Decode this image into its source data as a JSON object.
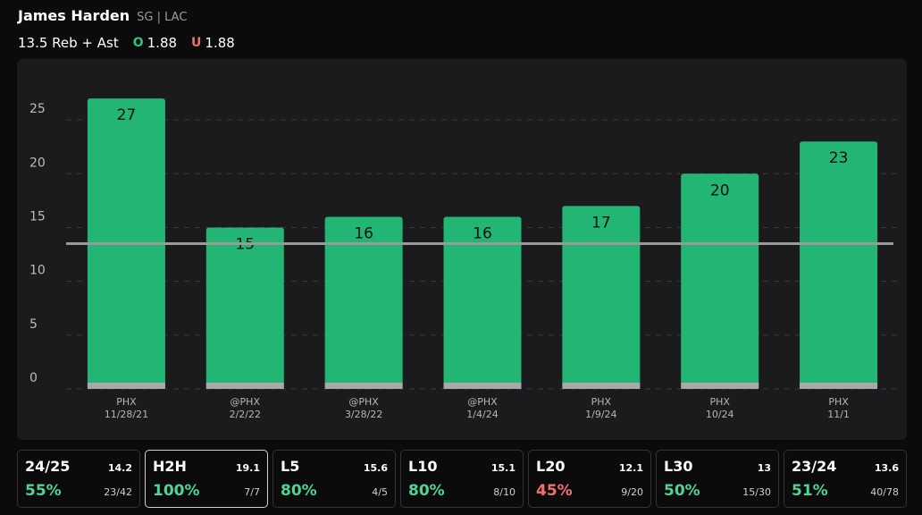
{
  "header": {
    "player_name": "James Harden",
    "player_meta": "SG | LAC",
    "prop_line": "13.5 Reb + Ast",
    "over_icon": "O",
    "over_odds": "1.88",
    "under_icon": "U",
    "under_odds": "1.88"
  },
  "colors": {
    "bar": "#22b573",
    "bar_base": "#a8a8a8",
    "line": "#9a9a9a",
    "grid": "#3a3a3d",
    "hit": "#4fd495",
    "miss": "#f07070"
  },
  "chart_data": {
    "type": "bar",
    "categories": [
      {
        "opponent": "PHX",
        "date": "11/28/21"
      },
      {
        "opponent": "@PHX",
        "date": "2/2/22"
      },
      {
        "opponent": "@PHX",
        "date": "3/28/22"
      },
      {
        "opponent": "@PHX",
        "date": "1/4/24"
      },
      {
        "opponent": "PHX",
        "date": "1/9/24"
      },
      {
        "opponent": "PHX",
        "date": "10/24"
      },
      {
        "opponent": "PHX",
        "date": "11/1"
      }
    ],
    "values": [
      27,
      15,
      16,
      16,
      17,
      20,
      23
    ],
    "reference_line": 13.5,
    "yticks": [
      0,
      5,
      10,
      15,
      20,
      25
    ],
    "ylim": [
      0,
      29
    ],
    "grid": true,
    "title": "",
    "xlabel": "",
    "ylabel": ""
  },
  "stats": [
    {
      "label": "24/25",
      "avg": "14.2",
      "pct": "55%",
      "frac": "23/42",
      "status": "hit",
      "active": false
    },
    {
      "label": "H2H",
      "avg": "19.1",
      "pct": "100%",
      "frac": "7/7",
      "status": "hit",
      "active": true
    },
    {
      "label": "L5",
      "avg": "15.6",
      "pct": "80%",
      "frac": "4/5",
      "status": "hit",
      "active": false
    },
    {
      "label": "L10",
      "avg": "15.1",
      "pct": "80%",
      "frac": "8/10",
      "status": "hit",
      "active": false
    },
    {
      "label": "L20",
      "avg": "12.1",
      "pct": "45%",
      "frac": "9/20",
      "status": "miss",
      "active": false
    },
    {
      "label": "L30",
      "avg": "13",
      "pct": "50%",
      "frac": "15/30",
      "status": "hit",
      "active": false
    },
    {
      "label": "23/24",
      "avg": "13.6",
      "pct": "51%",
      "frac": "40/78",
      "status": "hit",
      "active": false
    }
  ]
}
